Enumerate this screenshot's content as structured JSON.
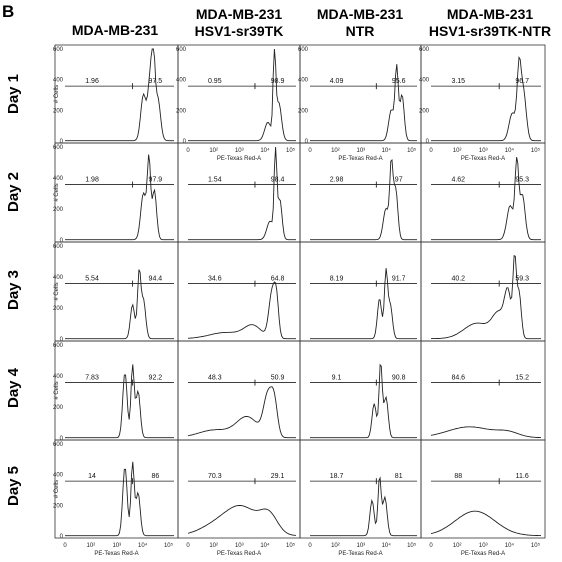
{
  "panel_label": "B",
  "columns": [
    "MDA-MB-231",
    "MDA-MB-231 HSV1-sr39TK",
    "MDA-MB-231 NTR",
    "MDA-MB-231 HSV1-sr39TK-NTR"
  ],
  "column_lines": [
    [
      "MDA-MB-231"
    ],
    [
      "MDA-MB-231",
      "HSV1-sr39TK"
    ],
    [
      "MDA-MB-231",
      "NTR"
    ],
    [
      "MDA-MB-231",
      "HSV1-sr39TK-NTR"
    ]
  ],
  "rows": [
    "Day 1",
    "Day 2",
    "Day 3",
    "Day 4",
    "Day 5"
  ],
  "y_axis_label": "# Cells",
  "x_axis_label": "PE-Texas Red-A",
  "x_ticks": [
    "0",
    "10²",
    "10³",
    "10⁴",
    "10⁵"
  ],
  "y_ticks": [
    "600",
    "400",
    "200",
    "0"
  ],
  "chart_data": {
    "type": "histogram-grid",
    "xlabel": "PE-Texas Red-A",
    "ylabel": "# Cells",
    "ylim": [
      0,
      600
    ],
    "gate_percentages": {
      "rows": [
        "Day 1",
        "Day 2",
        "Day 3",
        "Day 4",
        "Day 5"
      ],
      "columns": [
        "MDA-MB-231",
        "MDA-MB-231 HSV1-sr39TK",
        "MDA-MB-231 NTR",
        "MDA-MB-231 HSV1-sr39TK-NTR"
      ],
      "left_gate": [
        [
          1.96,
          0.95,
          4.09,
          3.15
        ],
        [
          1.98,
          1.54,
          2.98,
          4.62
        ],
        [
          5.54,
          34.6,
          8.19,
          40.2
        ],
        [
          7.83,
          48.3,
          9.1,
          84.6
        ],
        [
          14,
          70.3,
          18.7,
          88
        ]
      ],
      "right_gate": [
        [
          97.5,
          98.9,
          95.6,
          96.7
        ],
        [
          97.9,
          98.4,
          97,
          95.3
        ],
        [
          94.4,
          64.8,
          91.7,
          59.3
        ],
        [
          92.2,
          50.9,
          90.8,
          15.2
        ],
        [
          86,
          29.1,
          81,
          11.6
        ]
      ]
    }
  }
}
